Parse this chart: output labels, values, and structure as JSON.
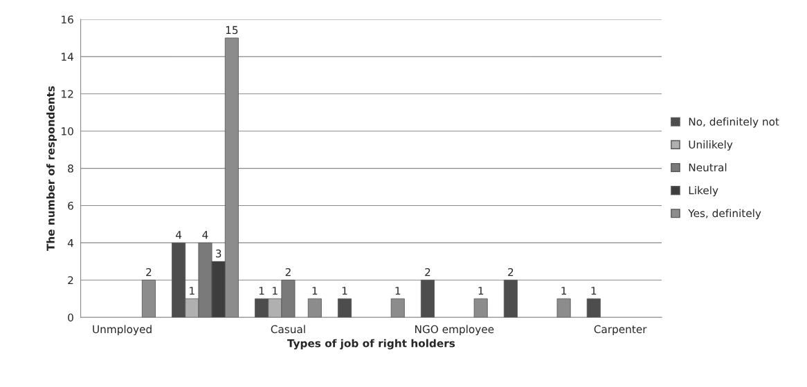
{
  "chart_data": {
    "type": "bar",
    "xlabel": "Types of job of right holders",
    "ylabel": "The number of respondents",
    "categories": [
      "Unmployed",
      null,
      "Casual",
      null,
      "NGO employee",
      null,
      "Carpenter"
    ],
    "series": [
      {
        "name": "No, definitely not",
        "color": "#4d4d4d",
        "values": [
          null,
          4,
          1,
          1,
          2,
          2,
          1
        ]
      },
      {
        "name": "Unilikely",
        "color": "#b0b0b0",
        "values": [
          null,
          1,
          1,
          null,
          null,
          null,
          null
        ]
      },
      {
        "name": "Neutral",
        "color": "#7a7a7a",
        "values": [
          null,
          4,
          2,
          null,
          null,
          null,
          null
        ]
      },
      {
        "name": "Likely",
        "color": "#3d3d3d",
        "values": [
          null,
          3,
          null,
          null,
          null,
          null,
          null
        ]
      },
      {
        "name": "Yes, definitely",
        "color": "#8c8c8c",
        "values": [
          2,
          15,
          1,
          1,
          1,
          1,
          null
        ]
      }
    ],
    "ylim": [
      0,
      16
    ],
    "yticks": [
      0,
      2,
      4,
      6,
      8,
      10,
      12,
      14,
      16
    ],
    "grid": "y",
    "legend": "right",
    "data_labels": true
  }
}
